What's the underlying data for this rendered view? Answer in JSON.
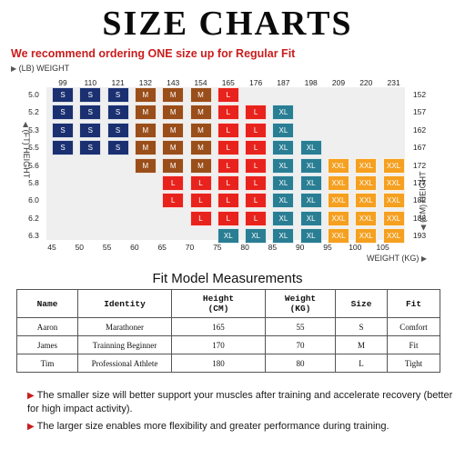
{
  "title": "SIZE CHARTS",
  "subtitle_pre": "We recommend ordering ",
  "subtitle_em": "ONE",
  "subtitle_post": " size up for Regular Fit",
  "chart": {
    "lb_label": "(LB) WEIGHT",
    "ft_label": "(FT) HEIGHT",
    "cm_label": "(CM) HEIGHT",
    "kg_label": "WEIGHT (KG)",
    "lb_ticks": [
      "99",
      "110",
      "121",
      "132",
      "143",
      "154",
      "165",
      "176",
      "187",
      "198",
      "209",
      "220",
      "231"
    ],
    "kg_ticks": [
      "45",
      "50",
      "55",
      "60",
      "65",
      "70",
      "75",
      "80",
      "85",
      "90",
      "95",
      "100",
      "105"
    ],
    "ft_ticks": [
      "5.0",
      "5.2",
      "5.3",
      "5.5",
      "5.6",
      "5.8",
      "6.0",
      "6.2",
      "6.3"
    ],
    "cm_ticks": [
      "152",
      "157",
      "162",
      "167",
      "172",
      "177",
      "182",
      "188",
      "193"
    ],
    "colors": {
      "S": "#1a3071",
      "M": "#9a4e1a",
      "L": "#e8231d",
      "XL": "#2a7e94",
      "XXL": "#f5a020"
    }
  },
  "chart_data": {
    "type": "table",
    "x_kg": [
      "45",
      "50",
      "55",
      "60",
      "65",
      "70",
      "75",
      "80",
      "85",
      "90",
      "95",
      "100",
      "105"
    ],
    "y_ft": [
      "5.0",
      "5.2",
      "5.3",
      "5.5",
      "5.6",
      "5.8",
      "6.0",
      "6.2",
      "6.3"
    ],
    "rows": [
      {
        "row": 0,
        "start": 0,
        "sizes": [
          "S",
          "S",
          "S",
          "M",
          "M",
          "M",
          "L"
        ]
      },
      {
        "row": 1,
        "start": 0,
        "sizes": [
          "S",
          "S",
          "S",
          "M",
          "M",
          "M",
          "L",
          "L",
          "XL"
        ]
      },
      {
        "row": 2,
        "start": 0,
        "sizes": [
          "S",
          "S",
          "S",
          "M",
          "M",
          "M",
          "L",
          "L",
          "XL"
        ]
      },
      {
        "row": 3,
        "start": 0,
        "sizes": [
          "S",
          "S",
          "S",
          "M",
          "M",
          "M",
          "L",
          "L",
          "XL",
          "XL"
        ]
      },
      {
        "row": 4,
        "start": 3,
        "sizes": [
          "M",
          "M",
          "M",
          "L",
          "L",
          "XL",
          "XL",
          "XXL",
          "XXL",
          "XXL"
        ]
      },
      {
        "row": 5,
        "start": 4,
        "sizes": [
          "L",
          "L",
          "L",
          "L",
          "XL",
          "XL",
          "XXL",
          "XXL",
          "XXL"
        ]
      },
      {
        "row": 6,
        "start": 4,
        "sizes": [
          "L",
          "L",
          "L",
          "L",
          "XL",
          "XL",
          "XXL",
          "XXL",
          "XXL"
        ]
      },
      {
        "row": 7,
        "start": 5,
        "sizes": [
          "L",
          "L",
          "L",
          "XL",
          "XL",
          "XXL",
          "XXL",
          "XXL"
        ]
      },
      {
        "row": 8,
        "start": 6,
        "sizes": [
          "XL",
          "XL",
          "XL",
          "XL",
          "XXL",
          "XXL",
          "XXL"
        ]
      }
    ]
  },
  "measurements": {
    "title": "Fit Model Measurements",
    "headers": [
      "Name",
      "Identity",
      "Height\n(CM)",
      "Weight\n(KG)",
      "Size",
      "Fit"
    ],
    "rows": [
      [
        "Aaron",
        "Marathoner",
        "165",
        "55",
        "S",
        "Comfort"
      ],
      [
        "James",
        "Trainning Beginner",
        "170",
        "70",
        "M",
        "Fit"
      ],
      [
        "Tim",
        "Professional Athlete",
        "180",
        "80",
        "L",
        "Tight"
      ]
    ]
  },
  "notes": [
    "The smaller size will better support your muscles after training and accelerate recovery (better for high impact activity).",
    "The larger size enables more flexibility and greater performance during training."
  ]
}
